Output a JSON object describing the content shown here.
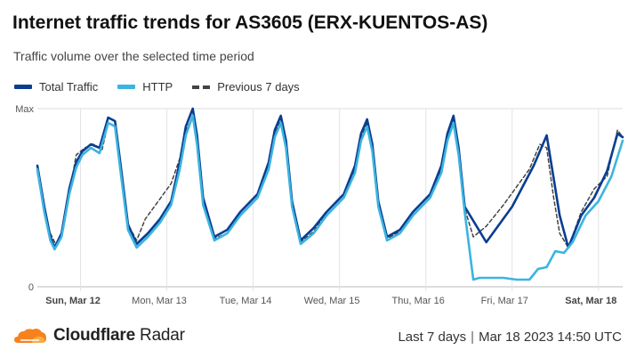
{
  "header": {
    "title": "Internet traffic trends for AS3605 (ERX-KUENTOS-AS)",
    "subtitle": "Traffic volume over the selected time period"
  },
  "legend": [
    {
      "label": "Total Traffic",
      "color": "#0a3d91",
      "style": "solid"
    },
    {
      "label": "HTTP",
      "color": "#3bb4e0",
      "style": "solid"
    },
    {
      "label": "Previous 7 days",
      "color": "#444444",
      "style": "dashed"
    }
  ],
  "footer": {
    "brand": "Cloudflare",
    "brand_suffix": "Radar",
    "range": "Last 7 days",
    "timestamp": "Mar 18 2023 14:50 UTC"
  },
  "chart_data": {
    "type": "line",
    "ylim": [
      0,
      1
    ],
    "y_tick_labels": [
      {
        "value": 1,
        "label": "Max"
      },
      {
        "value": 0,
        "label": "0"
      }
    ],
    "x_tick_labels": [
      {
        "label": "Sun, Mar 12",
        "bold": true
      },
      {
        "label": "Mon, Mar 13",
        "bold": false
      },
      {
        "label": "Tue, Mar 14",
        "bold": false
      },
      {
        "label": "Wed, Mar 15",
        "bold": false
      },
      {
        "label": "Thu, Mar 16",
        "bold": false
      },
      {
        "label": "Fri, Mar 17",
        "bold": false
      },
      {
        "label": "Sat, Mar 18",
        "bold": true
      }
    ],
    "x_domain_days": [
      0,
      6.78
    ],
    "grid": true,
    "series": [
      {
        "name": "Total Traffic",
        "color": "#0a3d91",
        "x": [
          0,
          0.08,
          0.15,
          0.2,
          0.28,
          0.37,
          0.45,
          0.52,
          0.62,
          0.72,
          0.82,
          0.9,
          0.96,
          1.05,
          1.15,
          1.28,
          1.42,
          1.55,
          1.65,
          1.72,
          1.8,
          1.85,
          1.92,
          2.05,
          2.2,
          2.35,
          2.55,
          2.68,
          2.75,
          2.82,
          2.88,
          2.95,
          3.05,
          3.2,
          3.35,
          3.55,
          3.68,
          3.75,
          3.82,
          3.88,
          3.95,
          4.05,
          4.2,
          4.35,
          4.55,
          4.68,
          4.75,
          4.82,
          4.88,
          4.95,
          5.2,
          5.5,
          5.75,
          5.9,
          6.05,
          6.15,
          6.3,
          6.45,
          6.6,
          6.72,
          6.78
        ],
        "y": [
          0.68,
          0.45,
          0.28,
          0.22,
          0.3,
          0.55,
          0.7,
          0.76,
          0.8,
          0.78,
          0.95,
          0.93,
          0.7,
          0.35,
          0.24,
          0.3,
          0.38,
          0.48,
          0.7,
          0.9,
          1.0,
          0.85,
          0.5,
          0.28,
          0.32,
          0.42,
          0.52,
          0.7,
          0.88,
          0.96,
          0.82,
          0.48,
          0.26,
          0.33,
          0.42,
          0.52,
          0.68,
          0.86,
          0.94,
          0.8,
          0.48,
          0.28,
          0.32,
          0.42,
          0.52,
          0.68,
          0.86,
          0.96,
          0.78,
          0.45,
          0.25,
          0.45,
          0.68,
          0.85,
          0.4,
          0.22,
          0.4,
          0.5,
          0.65,
          0.86,
          0.84
        ]
      },
      {
        "name": "HTTP",
        "color": "#3bb4e0",
        "x": [
          0,
          0.08,
          0.15,
          0.2,
          0.28,
          0.37,
          0.45,
          0.52,
          0.62,
          0.72,
          0.82,
          0.9,
          0.96,
          1.05,
          1.15,
          1.28,
          1.42,
          1.55,
          1.65,
          1.72,
          1.8,
          1.85,
          1.92,
          2.05,
          2.2,
          2.35,
          2.55,
          2.68,
          2.75,
          2.82,
          2.88,
          2.95,
          3.05,
          3.2,
          3.35,
          3.55,
          3.68,
          3.75,
          3.82,
          3.88,
          3.95,
          4.05,
          4.2,
          4.35,
          4.55,
          4.68,
          4.75,
          4.82,
          4.88,
          4.95,
          5.05,
          5.12,
          5.25,
          5.4,
          5.55,
          5.7,
          5.8,
          5.9,
          6.0,
          6.1,
          6.2,
          6.35,
          6.5,
          6.65,
          6.78
        ],
        "y": [
          0.66,
          0.42,
          0.26,
          0.21,
          0.28,
          0.52,
          0.67,
          0.74,
          0.78,
          0.75,
          0.92,
          0.9,
          0.66,
          0.32,
          0.22,
          0.28,
          0.36,
          0.46,
          0.66,
          0.85,
          0.96,
          0.8,
          0.46,
          0.26,
          0.3,
          0.4,
          0.5,
          0.66,
          0.84,
          0.92,
          0.78,
          0.45,
          0.24,
          0.3,
          0.4,
          0.5,
          0.64,
          0.82,
          0.9,
          0.76,
          0.45,
          0.26,
          0.3,
          0.4,
          0.5,
          0.64,
          0.82,
          0.92,
          0.74,
          0.42,
          0.04,
          0.05,
          0.05,
          0.05,
          0.04,
          0.04,
          0.1,
          0.11,
          0.2,
          0.19,
          0.25,
          0.4,
          0.48,
          0.62,
          0.82
        ]
      },
      {
        "name": "Previous 7 days",
        "color": "#444444",
        "dashed": true,
        "x": [
          0,
          0.08,
          0.15,
          0.22,
          0.3,
          0.38,
          0.45,
          0.55,
          0.65,
          0.75,
          0.82,
          0.9,
          0.96,
          1.05,
          1.15,
          1.25,
          1.4,
          1.55,
          1.65,
          1.72,
          1.8,
          1.85,
          1.92,
          2.05,
          2.2,
          2.35,
          2.55,
          2.68,
          2.75,
          2.82,
          2.88,
          2.95,
          3.05,
          3.2,
          3.35,
          3.55,
          3.68,
          3.75,
          3.82,
          3.88,
          3.95,
          4.05,
          4.2,
          4.35,
          4.55,
          4.68,
          4.75,
          4.82,
          4.88,
          4.95,
          5.05,
          5.2,
          5.4,
          5.55,
          5.7,
          5.82,
          5.9,
          5.98,
          6.05,
          6.15,
          6.3,
          6.45,
          6.6,
          6.72,
          6.78
        ],
        "y": [
          0.64,
          0.42,
          0.3,
          0.23,
          0.32,
          0.55,
          0.74,
          0.78,
          0.8,
          0.77,
          0.92,
          0.9,
          0.66,
          0.35,
          0.26,
          0.38,
          0.48,
          0.58,
          0.72,
          0.88,
          0.95,
          0.82,
          0.48,
          0.27,
          0.3,
          0.42,
          0.52,
          0.7,
          0.86,
          0.94,
          0.8,
          0.46,
          0.25,
          0.31,
          0.42,
          0.52,
          0.66,
          0.84,
          0.92,
          0.78,
          0.46,
          0.27,
          0.31,
          0.42,
          0.52,
          0.66,
          0.84,
          0.94,
          0.76,
          0.44,
          0.28,
          0.34,
          0.46,
          0.56,
          0.66,
          0.8,
          0.78,
          0.5,
          0.3,
          0.22,
          0.42,
          0.55,
          0.62,
          0.88,
          0.84
        ]
      }
    ]
  }
}
